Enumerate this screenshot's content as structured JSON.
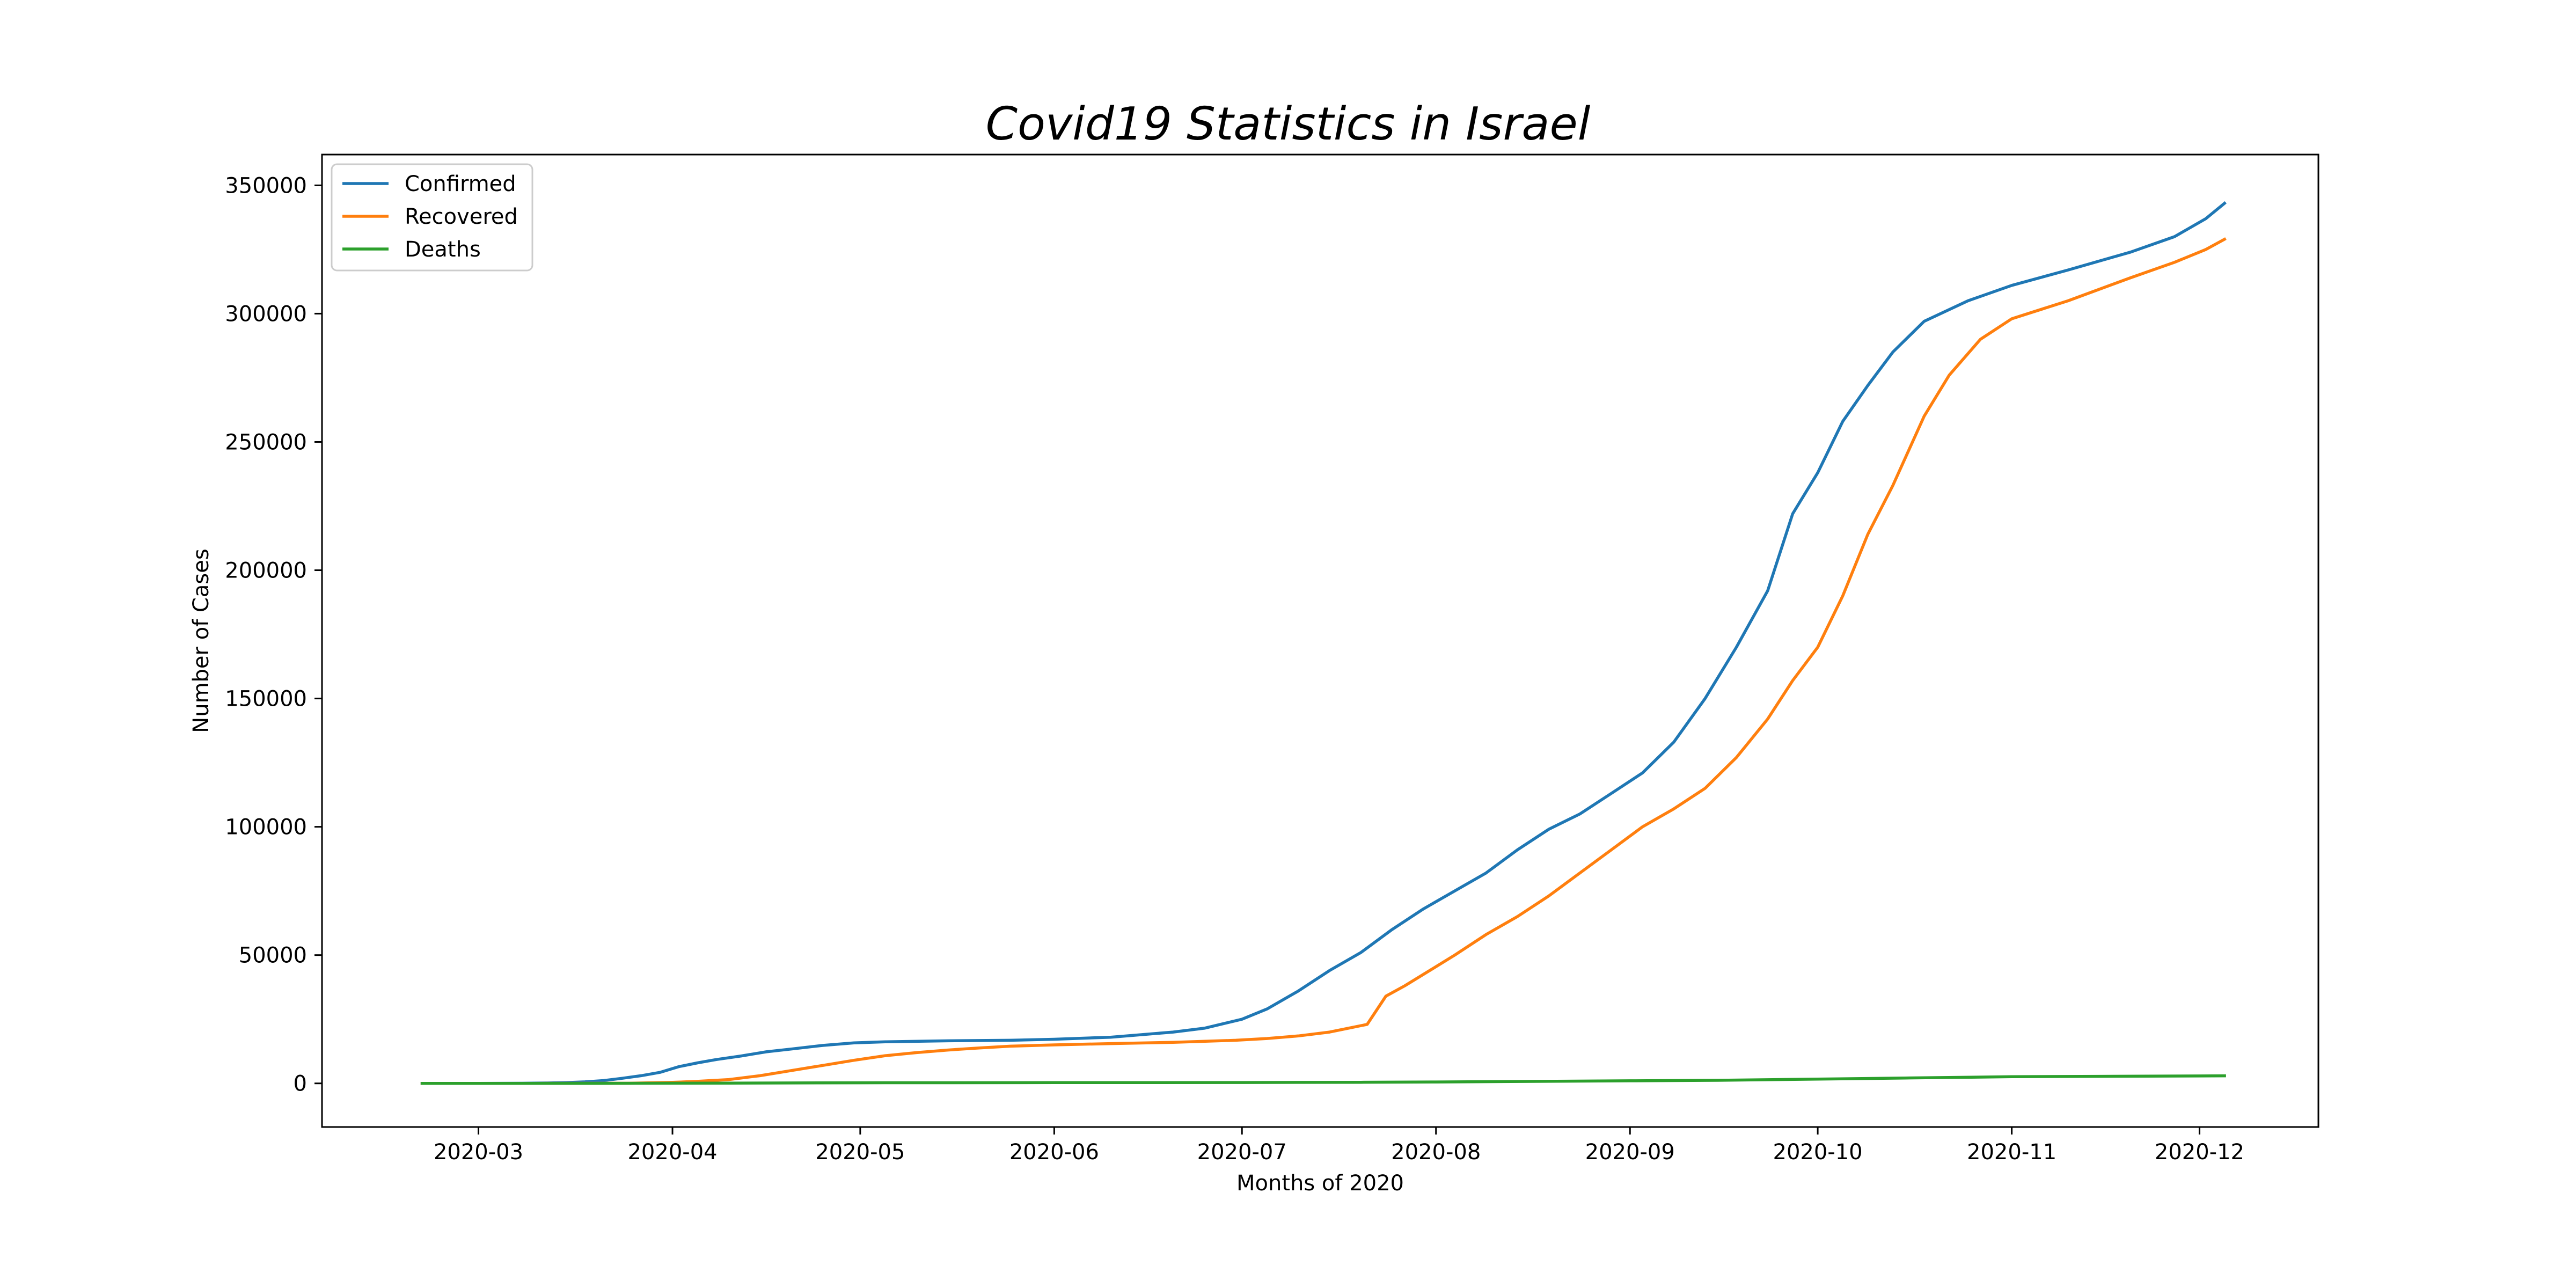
{
  "chart_data": {
    "type": "line",
    "title": "Covid19 Statistics in Israel",
    "xlabel": "Months of 2020",
    "ylabel": "Number of Cases",
    "xlim": [
      "2020-02-05",
      "2020-12-20"
    ],
    "ylim": [
      -17000,
      362000
    ],
    "x_ticks": [
      {
        "date": "2020-03-01",
        "label": "2020-03"
      },
      {
        "date": "2020-04-01",
        "label": "2020-04"
      },
      {
        "date": "2020-05-01",
        "label": "2020-05"
      },
      {
        "date": "2020-06-01",
        "label": "2020-06"
      },
      {
        "date": "2020-07-01",
        "label": "2020-07"
      },
      {
        "date": "2020-08-01",
        "label": "2020-08"
      },
      {
        "date": "2020-09-01",
        "label": "2020-09"
      },
      {
        "date": "2020-10-01",
        "label": "2020-10"
      },
      {
        "date": "2020-11-01",
        "label": "2020-11"
      },
      {
        "date": "2020-12-01",
        "label": "2020-12"
      }
    ],
    "y_ticks": [
      {
        "value": 0,
        "label": "0"
      },
      {
        "value": 50000,
        "label": "50000"
      },
      {
        "value": 100000,
        "label": "100000"
      },
      {
        "value": 150000,
        "label": "150000"
      },
      {
        "value": 200000,
        "label": "200000"
      },
      {
        "value": 250000,
        "label": "250000"
      },
      {
        "value": 300000,
        "label": "300000"
      },
      {
        "value": 350000,
        "label": "350000"
      }
    ],
    "grid": false,
    "legend_position": "upper left",
    "series": [
      {
        "name": "Confirmed",
        "color": "#1f77b4",
        "points": [
          [
            "2020-02-21",
            1
          ],
          [
            "2020-03-01",
            10
          ],
          [
            "2020-03-08",
            40
          ],
          [
            "2020-03-12",
            150
          ],
          [
            "2020-03-15",
            300
          ],
          [
            "2020-03-18",
            600
          ],
          [
            "2020-03-21",
            1100
          ],
          [
            "2020-03-24",
            2000
          ],
          [
            "2020-03-27",
            3000
          ],
          [
            "2020-03-30",
            4300
          ],
          [
            "2020-04-02",
            6500
          ],
          [
            "2020-04-05",
            8000
          ],
          [
            "2020-04-08",
            9300
          ],
          [
            "2020-04-12",
            10700
          ],
          [
            "2020-04-16",
            12300
          ],
          [
            "2020-04-20",
            13400
          ],
          [
            "2020-04-25",
            14800
          ],
          [
            "2020-04-30",
            15800
          ],
          [
            "2020-05-05",
            16200
          ],
          [
            "2020-05-15",
            16600
          ],
          [
            "2020-05-25",
            16800
          ],
          [
            "2020-06-01",
            17200
          ],
          [
            "2020-06-10",
            18000
          ],
          [
            "2020-06-20",
            20000
          ],
          [
            "2020-06-25",
            21500
          ],
          [
            "2020-07-01",
            25000
          ],
          [
            "2020-07-05",
            29000
          ],
          [
            "2020-07-10",
            36000
          ],
          [
            "2020-07-15",
            44000
          ],
          [
            "2020-07-20",
            51000
          ],
          [
            "2020-07-25",
            60000
          ],
          [
            "2020-07-30",
            68000
          ],
          [
            "2020-08-04",
            75000
          ],
          [
            "2020-08-09",
            82000
          ],
          [
            "2020-08-14",
            91000
          ],
          [
            "2020-08-19",
            99000
          ],
          [
            "2020-08-24",
            105000
          ],
          [
            "2020-08-29",
            113000
          ],
          [
            "2020-09-03",
            121000
          ],
          [
            "2020-09-08",
            133000
          ],
          [
            "2020-09-13",
            150000
          ],
          [
            "2020-09-18",
            170000
          ],
          [
            "2020-09-23",
            192000
          ],
          [
            "2020-09-27",
            222000
          ],
          [
            "2020-10-01",
            238000
          ],
          [
            "2020-10-05",
            258000
          ],
          [
            "2020-10-09",
            272000
          ],
          [
            "2020-10-13",
            285000
          ],
          [
            "2020-10-18",
            297000
          ],
          [
            "2020-10-25",
            305000
          ],
          [
            "2020-11-01",
            311000
          ],
          [
            "2020-11-10",
            317000
          ],
          [
            "2020-11-20",
            324000
          ],
          [
            "2020-11-27",
            330000
          ],
          [
            "2020-12-02",
            337000
          ],
          [
            "2020-12-05",
            343000
          ]
        ]
      },
      {
        "name": "Recovered",
        "color": "#ff7f0e",
        "points": [
          [
            "2020-02-21",
            0
          ],
          [
            "2020-03-10",
            10
          ],
          [
            "2020-03-25",
            50
          ],
          [
            "2020-04-01",
            400
          ],
          [
            "2020-04-05",
            800
          ],
          [
            "2020-04-10",
            1500
          ],
          [
            "2020-04-15",
            3000
          ],
          [
            "2020-04-20",
            5000
          ],
          [
            "2020-04-25",
            7000
          ],
          [
            "2020-04-30",
            9000
          ],
          [
            "2020-05-05",
            10800
          ],
          [
            "2020-05-10",
            12000
          ],
          [
            "2020-05-15",
            13000
          ],
          [
            "2020-05-20",
            13800
          ],
          [
            "2020-05-25",
            14500
          ],
          [
            "2020-06-01",
            15000
          ],
          [
            "2020-06-10",
            15500
          ],
          [
            "2020-06-20",
            16000
          ],
          [
            "2020-06-30",
            16800
          ],
          [
            "2020-07-05",
            17500
          ],
          [
            "2020-07-10",
            18500
          ],
          [
            "2020-07-15",
            20000
          ],
          [
            "2020-07-18",
            21500
          ],
          [
            "2020-07-21",
            23000
          ],
          [
            "2020-07-24",
            34000
          ],
          [
            "2020-07-27",
            38000
          ],
          [
            "2020-07-31",
            44000
          ],
          [
            "2020-08-04",
            50000
          ],
          [
            "2020-08-09",
            58000
          ],
          [
            "2020-08-14",
            65000
          ],
          [
            "2020-08-19",
            73000
          ],
          [
            "2020-08-24",
            82000
          ],
          [
            "2020-08-29",
            91000
          ],
          [
            "2020-09-03",
            100000
          ],
          [
            "2020-09-08",
            107000
          ],
          [
            "2020-09-13",
            115000
          ],
          [
            "2020-09-18",
            127000
          ],
          [
            "2020-09-23",
            142000
          ],
          [
            "2020-09-27",
            157000
          ],
          [
            "2020-10-01",
            170000
          ],
          [
            "2020-10-05",
            190000
          ],
          [
            "2020-10-09",
            214000
          ],
          [
            "2020-10-13",
            233000
          ],
          [
            "2020-10-18",
            260000
          ],
          [
            "2020-10-22",
            276000
          ],
          [
            "2020-10-27",
            290000
          ],
          [
            "2020-11-01",
            298000
          ],
          [
            "2020-11-10",
            305000
          ],
          [
            "2020-11-20",
            314000
          ],
          [
            "2020-11-27",
            320000
          ],
          [
            "2020-12-02",
            325000
          ],
          [
            "2020-12-05",
            329000
          ]
        ]
      },
      {
        "name": "Deaths",
        "color": "#2ca02c",
        "points": [
          [
            "2020-02-21",
            0
          ],
          [
            "2020-03-20",
            1
          ],
          [
            "2020-04-10",
            100
          ],
          [
            "2020-05-01",
            230
          ],
          [
            "2020-06-01",
            300
          ],
          [
            "2020-07-01",
            330
          ],
          [
            "2020-07-20",
            430
          ],
          [
            "2020-08-01",
            550
          ],
          [
            "2020-09-01",
            1000
          ],
          [
            "2020-09-15",
            1200
          ],
          [
            "2020-10-01",
            1650
          ],
          [
            "2020-10-15",
            2100
          ],
          [
            "2020-11-01",
            2600
          ],
          [
            "2020-11-15",
            2750
          ],
          [
            "2020-12-01",
            2900
          ],
          [
            "2020-12-05",
            2950
          ]
        ]
      }
    ]
  }
}
